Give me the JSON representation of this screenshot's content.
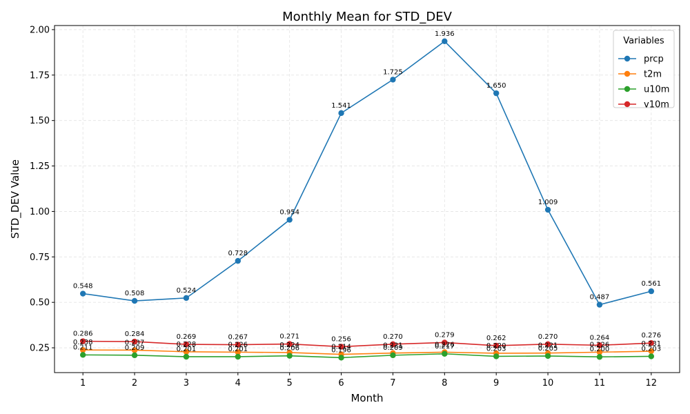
{
  "chart_data": {
    "type": "line",
    "title": "Monthly Mean for STD_DEV",
    "xlabel": "Month",
    "ylabel": "STD_DEV Value",
    "x": [
      1,
      2,
      3,
      4,
      5,
      6,
      7,
      8,
      9,
      10,
      11,
      12
    ],
    "xlim": [
      0.45,
      12.55
    ],
    "ylim": [
      0.1136,
      2.0225
    ],
    "yticks": [
      0.25,
      0.5,
      0.75,
      1.0,
      1.25,
      1.5,
      1.75,
      2.0
    ],
    "ytick_labels": [
      "0.25",
      "0.50",
      "0.75",
      "1.00",
      "1.25",
      "1.50",
      "1.75",
      "2.00"
    ],
    "xtick_labels": [
      "1",
      "2",
      "3",
      "4",
      "5",
      "6",
      "7",
      "8",
      "9",
      "10",
      "11",
      "12"
    ],
    "grid": true,
    "legend": {
      "title": "Variables",
      "position": "top-right"
    },
    "series": [
      {
        "name": "prcp",
        "color": "#1f77b4",
        "values": [
          0.548,
          0.508,
          0.524,
          0.728,
          0.954,
          1.541,
          1.725,
          1.936,
          1.65,
          1.009,
          0.487,
          0.561
        ],
        "labels": [
          "0.548",
          "0.508",
          "0.524",
          "0.728",
          "0.954",
          "1.541",
          "1.725",
          "1.936",
          "1.650",
          "1.009",
          "0.487",
          "0.561"
        ]
      },
      {
        "name": "t2m",
        "color": "#ff7f0e",
        "values": [
          0.238,
          0.237,
          0.228,
          0.226,
          0.224,
          0.214,
          0.221,
          0.226,
          0.22,
          0.221,
          0.226,
          0.231
        ],
        "labels": [
          "0.238",
          "0.237",
          "0.228",
          "0.226",
          "0.224",
          "0.214",
          "0.221",
          "0.226",
          "0.220",
          "0.221",
          "0.226",
          "0.231"
        ]
      },
      {
        "name": "u10m",
        "color": "#2ca02c",
        "values": [
          0.211,
          0.209,
          0.201,
          0.201,
          0.206,
          0.196,
          0.209,
          0.217,
          0.203,
          0.205,
          0.2,
          0.203
        ],
        "labels": [
          "0.211",
          "0.209",
          "0.201",
          "0.201",
          "0.206",
          "0.196",
          "0.209",
          "0.217",
          "0.203",
          "0.205",
          "0.200",
          "0.203"
        ]
      },
      {
        "name": "v10m",
        "color": "#d62728",
        "values": [
          0.286,
          0.284,
          0.269,
          0.267,
          0.271,
          0.256,
          0.27,
          0.279,
          0.262,
          0.27,
          0.264,
          0.276
        ],
        "labels": [
          "0.286",
          "0.284",
          "0.269",
          "0.267",
          "0.271",
          "0.256",
          "0.270",
          "0.279",
          "0.262",
          "0.270",
          "0.264",
          "0.276"
        ]
      }
    ]
  }
}
